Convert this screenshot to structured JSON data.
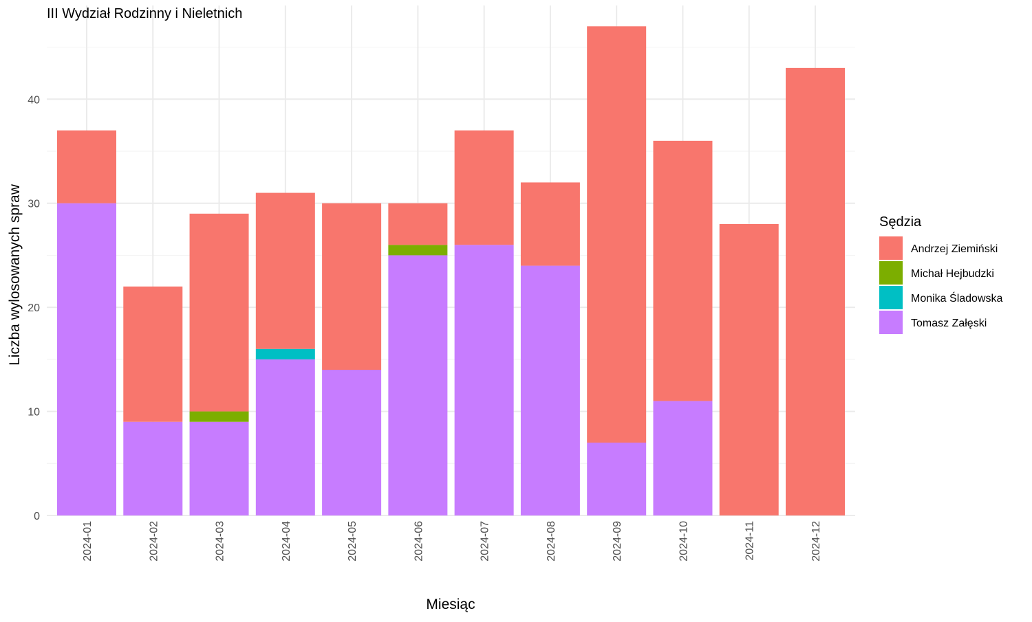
{
  "chart_data": {
    "type": "bar",
    "stacked": true,
    "title": "III Wydział Rodzinny i Nieletnich",
    "xlabel": "Miesiąc",
    "ylabel": "Liczba wylosowanych spraw",
    "ylim": [
      0,
      49
    ],
    "yticks": [
      0,
      10,
      20,
      30,
      40
    ],
    "grid": true,
    "legend_position": "right",
    "legend_title": "Sędzia",
    "categories": [
      "2024-01",
      "2024-02",
      "2024-03",
      "2024-04",
      "2024-05",
      "2024-06",
      "2024-07",
      "2024-08",
      "2024-09",
      "2024-10",
      "2024-11",
      "2024-12"
    ],
    "series": [
      {
        "name": "Tomasz Załęski",
        "color": "#C77CFF",
        "values": [
          30,
          9,
          9,
          15,
          14,
          25,
          26,
          24,
          7,
          11,
          0,
          0
        ]
      },
      {
        "name": "Monika Śladowska",
        "color": "#00BFC4",
        "values": [
          0,
          0,
          0,
          1,
          0,
          0,
          0,
          0,
          0,
          0,
          0,
          0
        ]
      },
      {
        "name": "Michał Hejbudzki",
        "color": "#7CAE00",
        "values": [
          0,
          0,
          1,
          0,
          0,
          1,
          0,
          0,
          0,
          0,
          0,
          0
        ]
      },
      {
        "name": "Andrzej Ziemiński",
        "color": "#F8766D",
        "values": [
          7,
          13,
          19,
          15,
          16,
          4,
          11,
          8,
          40,
          25,
          28,
          43
        ]
      }
    ],
    "legend_order": [
      "Andrzej Ziemiński",
      "Michał Hejbudzki",
      "Monika Śladowska",
      "Tomasz Załęski"
    ]
  }
}
